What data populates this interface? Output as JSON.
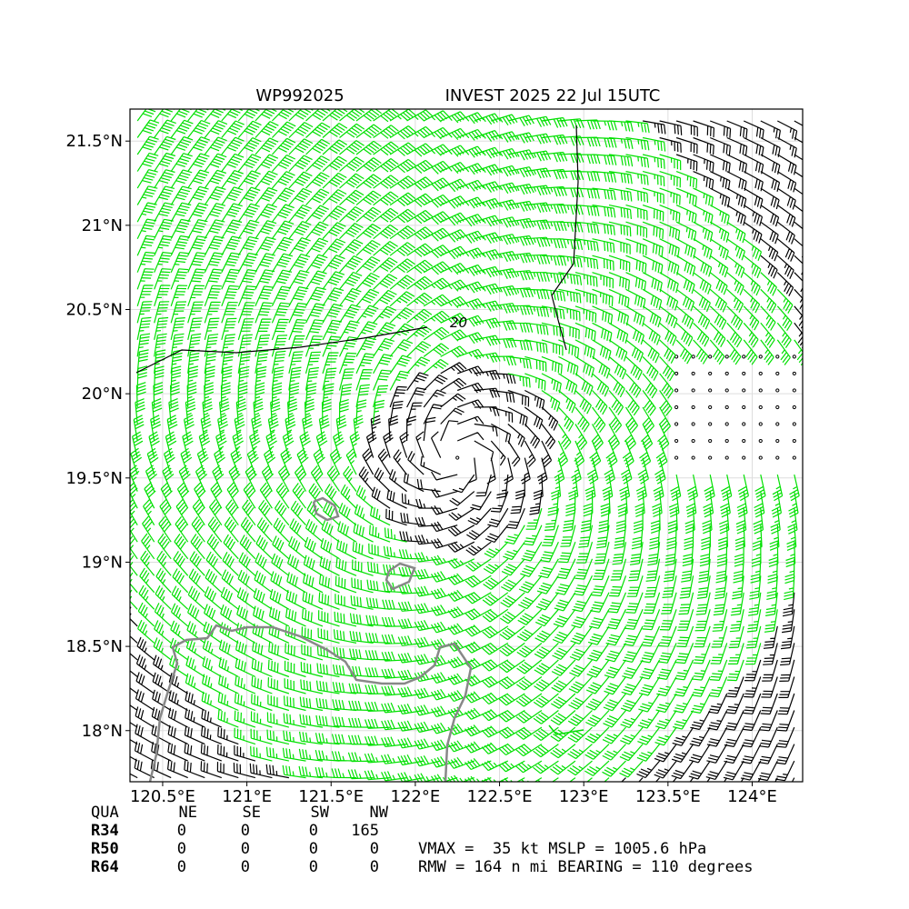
{
  "map": {
    "title_left": "WP992025",
    "title_right": "INVEST 2025 22 Jul 15UTC",
    "xticks": [
      {
        "value": 120.5,
        "label": "120.5°E"
      },
      {
        "value": 121,
        "label": "121°E"
      },
      {
        "value": 121.5,
        "label": "121.5°E"
      },
      {
        "value": 122,
        "label": "122°E"
      },
      {
        "value": 122.5,
        "label": "122.5°E"
      },
      {
        "value": 123,
        "label": "123°E"
      },
      {
        "value": 123.5,
        "label": "123.5°E"
      },
      {
        "value": 124,
        "label": "124°E"
      }
    ],
    "yticks": [
      {
        "value": 21.5,
        "label": "21.5°N"
      },
      {
        "value": 21,
        "label": "21°N"
      },
      {
        "value": 20.5,
        "label": "20.5°N"
      },
      {
        "value": 20,
        "label": "20°N"
      },
      {
        "value": 19.5,
        "label": "19.5°N"
      },
      {
        "value": 19,
        "label": "19°N"
      },
      {
        "value": 18.5,
        "label": "18.5°N"
      },
      {
        "value": 18,
        "label": "18°N"
      }
    ],
    "contour_label": "20",
    "table": {
      "header": [
        "QUA",
        "NE",
        "SE",
        "SW",
        "NW"
      ],
      "rows": [
        [
          "R34",
          "0",
          "0",
          "0",
          "165"
        ],
        [
          "R50",
          "0",
          "0",
          "0",
          "0"
        ],
        [
          "R64",
          "0",
          "0",
          "0",
          "0"
        ]
      ]
    },
    "stats": [
      "VMAX =  35 kt MSLP = 1005.6 hPa",
      "RMW = 164 n mi BEARING = 110 degrees"
    ]
  }
}
